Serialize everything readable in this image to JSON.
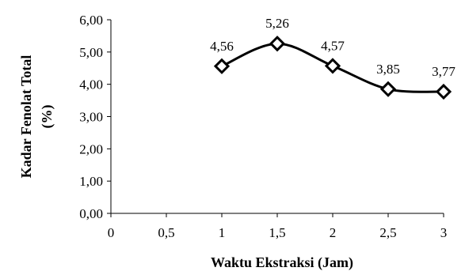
{
  "chart_data": {
    "type": "line",
    "xlabel": "Waktu Ekstraksi (Jam)",
    "ylabel": "Kadar Fenolat Total (%)",
    "xlim": [
      0,
      3
    ],
    "ylim": [
      0,
      6
    ],
    "x_ticks": [
      "0",
      "0,5",
      "1",
      "1,5",
      "2",
      "2,5",
      "3"
    ],
    "y_ticks": [
      "0,00",
      "1,00",
      "2,00",
      "3,00",
      "4,00",
      "5,00",
      "6,00"
    ],
    "grid": false,
    "smoothed": true,
    "marker": "diamond",
    "series": [
      {
        "x": [
          1,
          1.5,
          2,
          2.5,
          3
        ],
        "y": [
          4.56,
          5.26,
          4.57,
          3.85,
          3.77
        ],
        "labels": [
          "4,56",
          "5,26",
          "4,57",
          "3,85",
          "3,77"
        ],
        "color": "#000000"
      }
    ]
  }
}
